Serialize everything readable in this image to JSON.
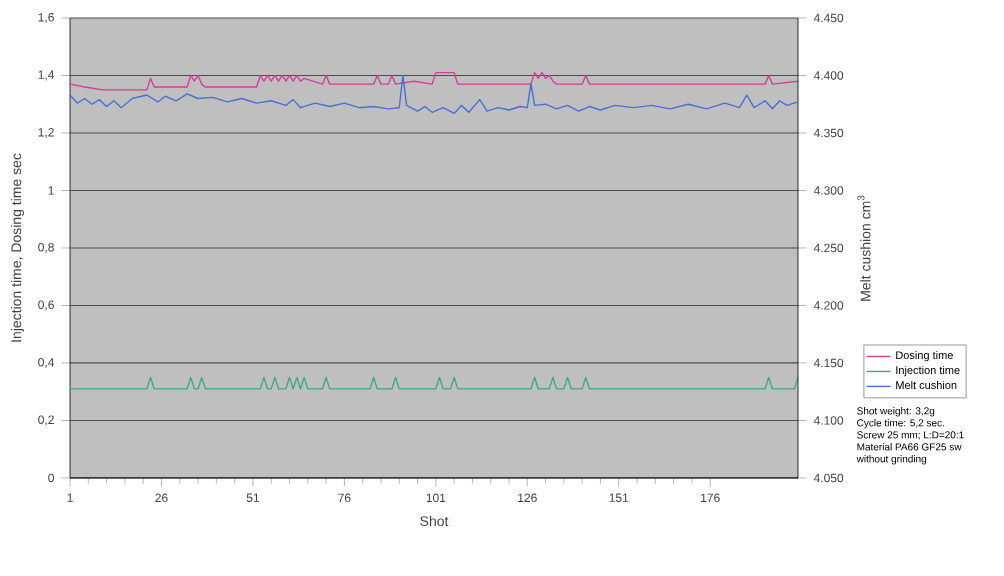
{
  "chart_data": {
    "type": "line",
    "xlabel": "Shot",
    "ylabel": "Injection time, Dosing time sec",
    "y2label": "Melt cushion cm$^{3}$",
    "xlim": [
      1,
      200
    ],
    "xticks": [
      1,
      26,
      51,
      76,
      101,
      126,
      151,
      176
    ],
    "ylim": [
      0,
      1.6
    ],
    "yticks": [
      {
        "value": 0,
        "label": "0"
      },
      {
        "value": 0.2,
        "label": "0,2"
      },
      {
        "value": 0.4,
        "label": "0,4"
      },
      {
        "value": 0.6,
        "label": "0,6"
      },
      {
        "value": 0.8,
        "label": "0,8"
      },
      {
        "value": 1,
        "label": "1"
      },
      {
        "value": 1.2,
        "label": "1,2"
      },
      {
        "value": 1.4,
        "label": "1,4"
      },
      {
        "value": 1.6,
        "label": "1,6"
      }
    ],
    "y2lim": [
      4050,
      4450
    ],
    "y2ticks": [
      {
        "value": 4050,
        "label": "4.050"
      },
      {
        "value": 4100,
        "label": "4.100"
      },
      {
        "value": 4150,
        "label": "4.150"
      },
      {
        "value": 4200,
        "label": "4.200"
      },
      {
        "value": 4250,
        "label": "4.250"
      },
      {
        "value": 4300,
        "label": "4.300"
      },
      {
        "value": 4350,
        "label": "4.350"
      },
      {
        "value": 4400,
        "label": "4.400"
      },
      {
        "value": 4450,
        "label": "4.450"
      }
    ],
    "grid": "y",
    "legend": "right",
    "marker": "none",
    "series": [
      {
        "name": "Dosing time",
        "color": "#d43f96",
        "x": [
          1,
          5,
          10,
          20,
          22,
          23,
          24,
          30,
          33,
          34,
          35,
          36,
          37,
          38,
          45,
          52,
          53,
          54,
          55,
          56,
          57,
          58,
          59,
          60,
          61,
          62,
          63,
          64,
          65,
          70,
          71,
          72,
          80,
          84,
          85,
          86,
          88,
          89,
          90,
          95,
          100,
          101,
          102,
          104,
          105,
          106,
          107,
          110,
          120,
          127,
          128,
          129,
          130,
          131,
          132,
          133,
          134,
          141,
          142,
          143,
          150,
          170,
          190,
          191,
          192,
          193,
          200
        ],
        "values": [
          1.37,
          1.36,
          1.35,
          1.35,
          1.35,
          1.39,
          1.36,
          1.36,
          1.36,
          1.4,
          1.38,
          1.4,
          1.37,
          1.36,
          1.36,
          1.36,
          1.4,
          1.38,
          1.4,
          1.38,
          1.4,
          1.38,
          1.4,
          1.38,
          1.4,
          1.38,
          1.4,
          1.38,
          1.39,
          1.37,
          1.4,
          1.37,
          1.37,
          1.37,
          1.4,
          1.37,
          1.37,
          1.4,
          1.37,
          1.38,
          1.37,
          1.41,
          1.41,
          1.41,
          1.41,
          1.41,
          1.37,
          1.37,
          1.37,
          1.37,
          1.41,
          1.39,
          1.41,
          1.39,
          1.4,
          1.38,
          1.37,
          1.37,
          1.4,
          1.37,
          1.37,
          1.37,
          1.37,
          1.37,
          1.4,
          1.37,
          1.38
        ]
      },
      {
        "name": "Injection time",
        "color": "#3aa88a",
        "x": [
          1,
          22,
          23,
          24,
          33,
          34,
          35,
          36,
          37,
          38,
          53,
          54,
          55,
          56,
          57,
          58,
          60,
          61,
          62,
          63,
          64,
          65,
          66,
          70,
          71,
          72,
          83,
          84,
          85,
          89,
          90,
          91,
          101,
          102,
          103,
          105,
          106,
          107,
          127,
          128,
          129,
          132,
          133,
          134,
          136,
          137,
          138,
          141,
          142,
          143,
          191,
          192,
          193,
          199,
          200
        ],
        "values": [
          0.31,
          0.31,
          0.35,
          0.31,
          0.31,
          0.35,
          0.31,
          0.31,
          0.35,
          0.31,
          0.31,
          0.35,
          0.31,
          0.31,
          0.35,
          0.31,
          0.31,
          0.35,
          0.31,
          0.35,
          0.31,
          0.35,
          0.31,
          0.31,
          0.35,
          0.31,
          0.31,
          0.35,
          0.31,
          0.31,
          0.35,
          0.31,
          0.31,
          0.35,
          0.31,
          0.31,
          0.35,
          0.31,
          0.31,
          0.35,
          0.31,
          0.31,
          0.35,
          0.31,
          0.31,
          0.35,
          0.31,
          0.31,
          0.35,
          0.31,
          0.31,
          0.35,
          0.31,
          0.31,
          0.35
        ]
      },
      {
        "name": "Melt cushion",
        "color": "#4a6fd6",
        "axis": "y2",
        "x": [
          1,
          3,
          5,
          7,
          9,
          11,
          13,
          15,
          18,
          22,
          25,
          27,
          30,
          33,
          36,
          40,
          44,
          48,
          52,
          56,
          60,
          62,
          64,
          68,
          72,
          76,
          80,
          84,
          88,
          91,
          92,
          93,
          96,
          98,
          100,
          103,
          106,
          108,
          110,
          113,
          115,
          118,
          121,
          124,
          126,
          127,
          128,
          131,
          134,
          137,
          140,
          143,
          146,
          150,
          155,
          160,
          165,
          170,
          175,
          180,
          184,
          186,
          188,
          191,
          193,
          195,
          197,
          200
        ],
        "values": [
          4383,
          4376,
          4380,
          4375,
          4379,
          4373,
          4378,
          4372,
          4380,
          4383,
          4377,
          4382,
          4378,
          4384,
          4380,
          4381,
          4377,
          4380,
          4376,
          4378,
          4374,
          4379,
          4372,
          4376,
          4373,
          4376,
          4372,
          4373,
          4371,
          4372,
          4400,
          4374,
          4369,
          4373,
          4368,
          4372,
          4367,
          4374,
          4368,
          4379,
          4369,
          4372,
          4370,
          4373,
          4372,
          4393,
          4374,
          4375,
          4371,
          4374,
          4369,
          4373,
          4370,
          4374,
          4372,
          4374,
          4371,
          4375,
          4371,
          4376,
          4372,
          4383,
          4372,
          4378,
          4371,
          4378,
          4374,
          4377
        ]
      }
    ],
    "annotations": [
      "Shot weight: 3,2g",
      "Cycle time: 5,2 sec.",
      "Screw 25 mm; L:D=20:1",
      "Material PA66 GF25 sw",
      "without grinding"
    ]
  }
}
